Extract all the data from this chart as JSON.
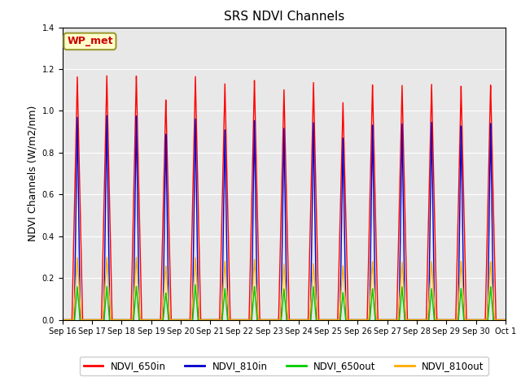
{
  "title": "SRS NDVI Channels",
  "ylabel": "NDVI Channels (W/m2/nm)",
  "xlabel": "",
  "ylim": [
    0.0,
    1.4
  ],
  "background_color": "#e8e8e8",
  "annotation_text": "WP_met",
  "annotation_bg": "#ffffcc",
  "annotation_edge": "#999933",
  "annotation_text_color": "#cc0000",
  "legend_labels": [
    "NDVI_650in",
    "NDVI_810in",
    "NDVI_650out",
    "NDVI_810out"
  ],
  "legend_colors": [
    "#ff0000",
    "#0000cc",
    "#00cc00",
    "#ffaa00"
  ],
  "n_peaks": 15,
  "xtick_labels": [
    "Sep 16",
    "Sep 17",
    "Sep 18",
    "Sep 19",
    "Sep 20",
    "Sep 21",
    "Sep 22",
    "Sep 23",
    "Sep 24",
    "Sep 25",
    "Sep 26",
    "Sep 27",
    "Sep 28",
    "Sep 29",
    "Sep 30",
    "Oct 1"
  ],
  "peak_in_heights_red": [
    1.17,
    1.17,
    1.17,
    1.06,
    1.17,
    1.13,
    1.15,
    1.11,
    1.14,
    1.04,
    1.13,
    1.13,
    1.13,
    1.12,
    1.13
  ],
  "peak_in_heights_blue": [
    0.98,
    0.98,
    0.98,
    0.9,
    0.97,
    0.91,
    0.96,
    0.93,
    0.95,
    0.87,
    0.94,
    0.95,
    0.95,
    0.93,
    0.95
  ],
  "peak_out_heights_green": [
    0.16,
    0.16,
    0.16,
    0.13,
    0.17,
    0.15,
    0.16,
    0.15,
    0.16,
    0.13,
    0.15,
    0.16,
    0.15,
    0.15,
    0.16
  ],
  "peak_out_heights_orange": [
    0.3,
    0.3,
    0.3,
    0.26,
    0.3,
    0.28,
    0.29,
    0.27,
    0.27,
    0.26,
    0.28,
    0.28,
    0.28,
    0.28,
    0.28
  ],
  "red_sigma": 0.18,
  "blue_sigma": 0.1,
  "green_sigma": 0.09,
  "orange_sigma": 0.13,
  "line_width": 1.0,
  "grid_color": "#ffffff",
  "title_fontsize": 11,
  "tick_fontsize": 7,
  "ylabel_fontsize": 9
}
